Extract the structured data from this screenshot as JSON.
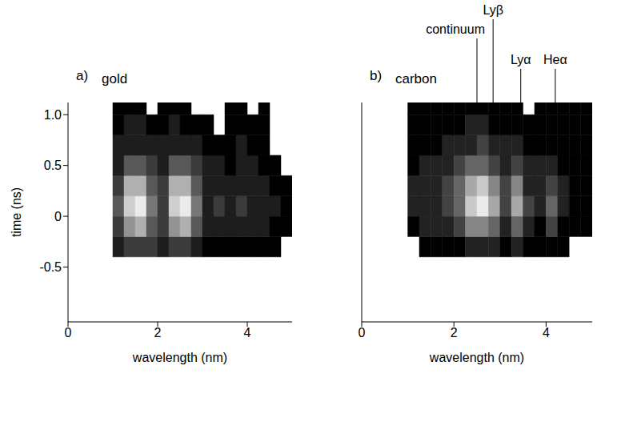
{
  "chart_data": [
    {
      "type": "heatmap",
      "panel": "a)",
      "title": "gold",
      "xlabel": "wavelength (nm)",
      "ylabel": "time (ns)",
      "xlim": [
        0,
        5
      ],
      "xticks": [
        0,
        2,
        4
      ],
      "ylim": [
        -1.04,
        1.12
      ],
      "yticks": [
        -0.5,
        0,
        0.5,
        {
          "value": 1,
          "label": "1.0"
        }
      ],
      "x_bins": [
        1.0,
        1.25,
        1.5,
        1.75,
        2.0,
        2.25,
        2.5,
        2.75,
        3.0,
        3.25,
        3.5,
        3.75,
        4.0,
        4.25,
        4.5,
        4.75,
        5.0
      ],
      "y_bins": [
        -0.4,
        -0.2,
        0,
        0.2,
        0.4,
        0.6,
        0.8,
        1.0,
        1.12
      ],
      "cells": [
        [
          2,
          3,
          3,
          3,
          2,
          3,
          3,
          2,
          1,
          1,
          1,
          1,
          1,
          1,
          1,
          0
        ],
        [
          3,
          6,
          7,
          4,
          3,
          6,
          7,
          4,
          2,
          2,
          2,
          2,
          2,
          2,
          1,
          1
        ],
        [
          4,
          8,
          9,
          5,
          3,
          8,
          9,
          5,
          2,
          3,
          2,
          3,
          2,
          2,
          2,
          1
        ],
        [
          3,
          7,
          7,
          4,
          3,
          7,
          7,
          4,
          2,
          2,
          2,
          2,
          2,
          2,
          1,
          1
        ],
        [
          2,
          4,
          4,
          3,
          2,
          4,
          4,
          3,
          2,
          2,
          1,
          2,
          2,
          1,
          1,
          0
        ],
        [
          2,
          2,
          2,
          2,
          2,
          2,
          2,
          2,
          1,
          1,
          1,
          2,
          1,
          1,
          0,
          0
        ],
        [
          1,
          2,
          2,
          1,
          1,
          2,
          1,
          1,
          1,
          0,
          1,
          1,
          1,
          1,
          0,
          0
        ],
        [
          1,
          1,
          1,
          0,
          1,
          1,
          1,
          0,
          0,
          0,
          1,
          1,
          0,
          1,
          0,
          0
        ]
      ]
    },
    {
      "type": "heatmap",
      "panel": "b)",
      "title": "carbon",
      "xlabel": "wavelength (nm)",
      "xlim": [
        0,
        5
      ],
      "xticks": [
        0,
        2,
        4
      ],
      "ylim": [
        -1.04,
        1.12
      ],
      "yticks": [
        -0.5,
        0,
        0.5,
        1
      ],
      "tick_labels": "x",
      "annotations": [
        {
          "text": "continuum",
          "x": 2.5
        },
        {
          "text": "Lyβ",
          "x": 2.85
        },
        {
          "text": "Lyα",
          "x": 3.45
        },
        {
          "text": "Heα",
          "x": 4.2
        }
      ],
      "x_bins": [
        1.0,
        1.25,
        1.5,
        1.75,
        2.0,
        2.25,
        2.5,
        2.75,
        3.0,
        3.25,
        3.5,
        3.75,
        4.0,
        4.25,
        4.5,
        4.75,
        5.0
      ],
      "y_bins": [
        -0.4,
        -0.2,
        0,
        0.2,
        0.4,
        0.6,
        0.8,
        1.0,
        1.12
      ],
      "cells": [
        [
          0,
          1,
          1,
          1,
          1,
          2,
          2,
          2,
          1,
          2,
          1,
          1,
          1,
          1,
          0,
          0
        ],
        [
          1,
          2,
          2,
          2,
          3,
          5,
          5,
          4,
          2,
          4,
          2,
          1,
          3,
          1,
          1,
          1
        ],
        [
          2,
          2,
          2,
          3,
          4,
          7,
          8,
          6,
          3,
          6,
          3,
          2,
          4,
          2,
          1,
          1
        ],
        [
          2,
          2,
          2,
          3,
          4,
          6,
          7,
          5,
          3,
          5,
          2,
          2,
          3,
          2,
          1,
          1
        ],
        [
          1,
          2,
          2,
          2,
          3,
          4,
          4,
          3,
          2,
          3,
          2,
          2,
          2,
          1,
          1,
          1
        ],
        [
          1,
          1,
          1,
          2,
          2,
          2,
          3,
          2,
          2,
          2,
          1,
          1,
          1,
          1,
          1,
          1
        ],
        [
          1,
          1,
          1,
          1,
          1,
          2,
          2,
          1,
          1,
          1,
          1,
          1,
          1,
          1,
          1,
          1
        ],
        [
          1,
          1,
          1,
          1,
          1,
          1,
          1,
          1,
          1,
          1,
          0,
          1,
          1,
          1,
          1,
          1
        ]
      ]
    }
  ]
}
